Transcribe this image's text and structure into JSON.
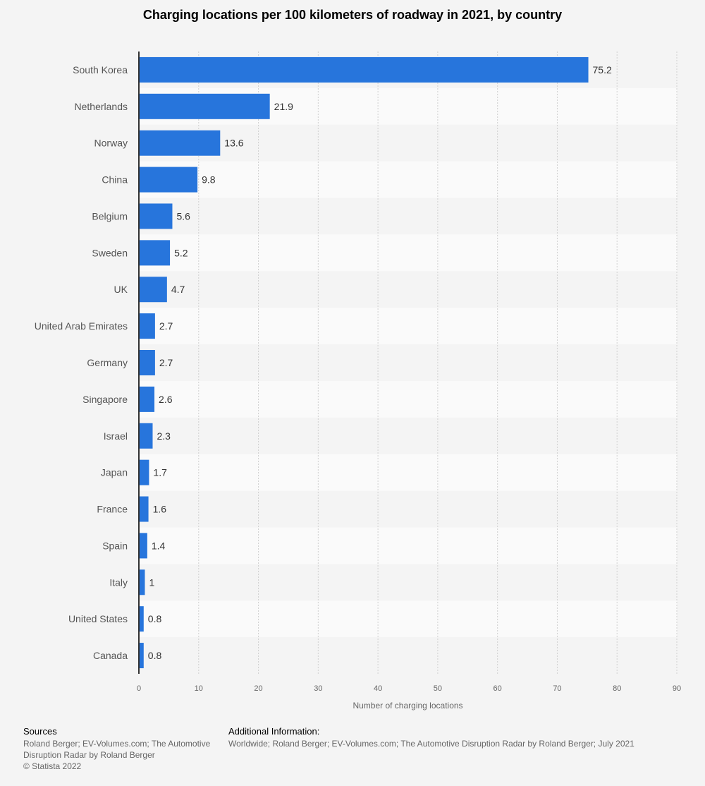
{
  "chart_data": {
    "type": "bar",
    "orientation": "horizontal",
    "title": "Charging locations per 100 kilometers of roadway in 2021, by country",
    "xlabel": "Number of charging locations",
    "ylabel": "",
    "categories": [
      "South Korea",
      "Netherlands",
      "Norway",
      "China",
      "Belgium",
      "Sweden",
      "UK",
      "United Arab Emirates",
      "Germany",
      "Singapore",
      "Israel",
      "Japan",
      "France",
      "Spain",
      "Italy",
      "United States",
      "Canada"
    ],
    "values": [
      75.2,
      21.9,
      13.6,
      9.8,
      5.6,
      5.2,
      4.7,
      2.7,
      2.7,
      2.6,
      2.3,
      1.7,
      1.6,
      1.4,
      1,
      0.8,
      0.8
    ],
    "data_labels": [
      "75.2",
      "21.9",
      "13.6",
      "9.8",
      "5.6",
      "5.2",
      "4.7",
      "2.7",
      "2.7",
      "2.6",
      "2.3",
      "1.7",
      "1.6",
      "1.4",
      "1",
      "0.8",
      "0.8"
    ],
    "xlim": [
      0,
      90
    ],
    "xticks": [
      "0",
      "10",
      "20",
      "30",
      "40",
      "50",
      "60",
      "70",
      "80",
      "90"
    ],
    "grid": true,
    "bar_color": "#2775dc"
  },
  "footer": {
    "sources_heading": "Sources",
    "sources_text": "Roland Berger; EV-Volumes.com; The Automotive Disruption Radar by Roland Berger",
    "copyright": "© Statista 2022",
    "additional_heading": "Additional Information:",
    "additional_text": "Worldwide; Roland Berger; EV-Volumes.com; The Automotive Disruption Radar by Roland Berger; July 2021"
  }
}
